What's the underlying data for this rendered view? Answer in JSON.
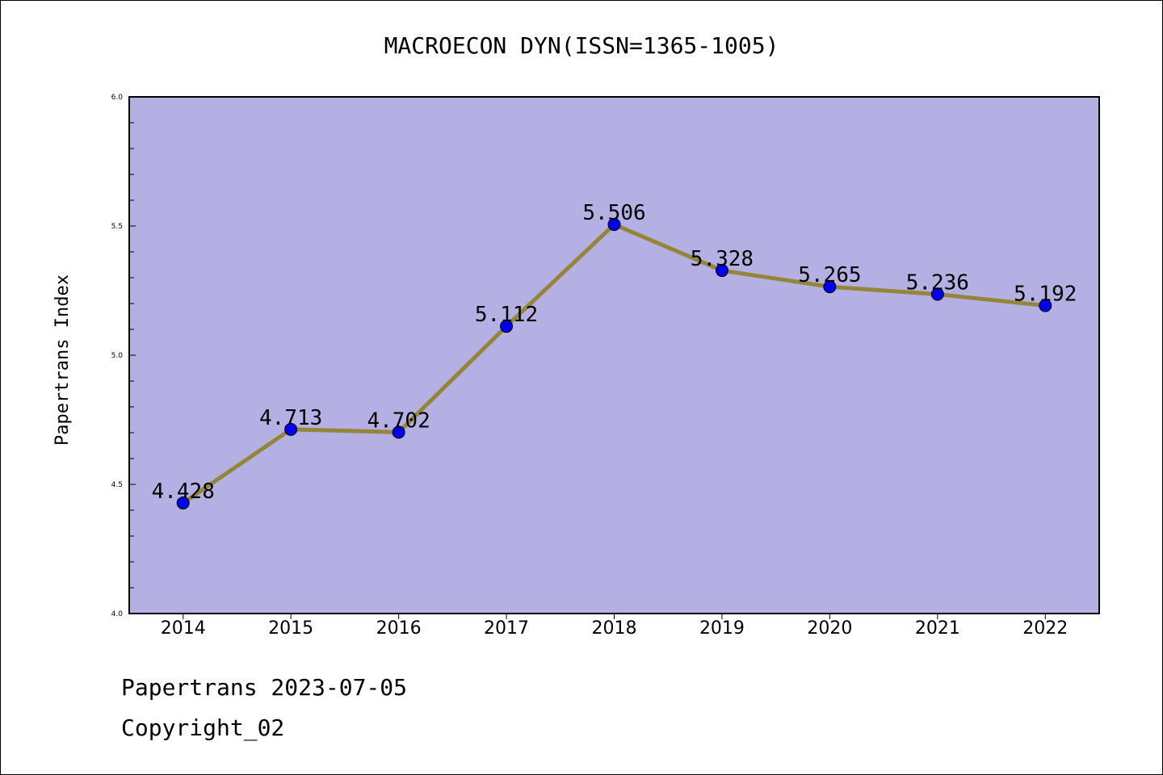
{
  "chart_data": {
    "type": "line",
    "title": "MACROECON DYN(ISSN=1365-1005)",
    "ylabel": "Papertrans Index",
    "xlabel": "",
    "categories": [
      "2014",
      "2015",
      "2016",
      "2017",
      "2018",
      "2019",
      "2020",
      "2021",
      "2022"
    ],
    "values": [
      4.428,
      4.713,
      4.702,
      5.112,
      5.506,
      5.328,
      5.265,
      5.236,
      5.192
    ],
    "data_labels": [
      "4.428",
      "4.713",
      "4.702",
      "5.112",
      "5.506",
      "5.328",
      "5.265",
      "5.236",
      "5.192"
    ],
    "ylim": [
      4.0,
      6.0
    ],
    "yticks": [
      "4.0",
      "4.5",
      "5.0",
      "5.5",
      "6.0"
    ],
    "grid": false,
    "colors": {
      "plot_background": "#b5b0e3",
      "line": "#948539",
      "marker": "#0000ee"
    }
  },
  "footer": {
    "line1": "Papertrans 2023-07-05",
    "line2": "Copyright_02"
  }
}
